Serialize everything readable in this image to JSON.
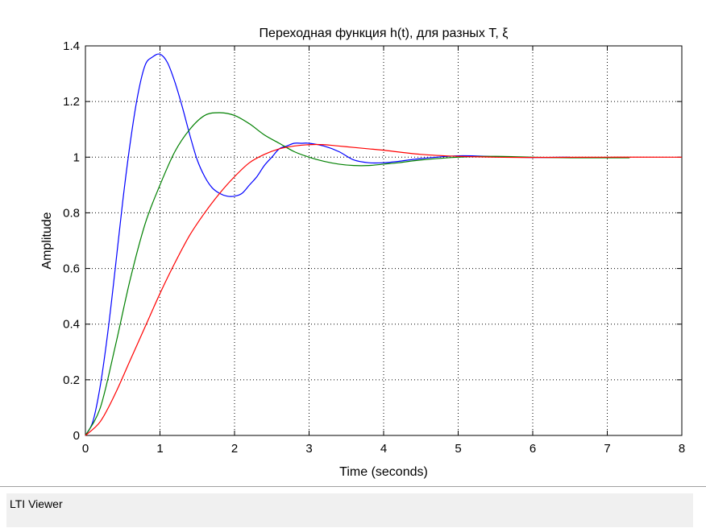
{
  "chart_data": {
    "type": "line",
    "title": "Переходная функция h(t), для разных T, ξ",
    "xlabel": "Time (seconds)",
    "ylabel": "Amplitude",
    "xlim": [
      0,
      8
    ],
    "ylim": [
      0,
      1.4
    ],
    "xticks": [
      "0",
      "1",
      "2",
      "3",
      "4",
      "5",
      "6",
      "7",
      "8"
    ],
    "yticks": [
      "0",
      "0.2",
      "0.4",
      "0.6",
      "0.8",
      "1",
      "1.2",
      "1.4"
    ],
    "grid": true,
    "legend": "none",
    "series": [
      {
        "color": "#0000ff",
        "x_end": 6.5,
        "x": [
          0,
          0.1,
          0.2,
          0.3,
          0.4,
          0.5,
          0.6,
          0.7,
          0.8,
          0.9,
          1.0,
          1.1,
          1.2,
          1.3,
          1.4,
          1.5,
          1.6,
          1.7,
          1.8,
          1.9,
          2.0,
          2.1,
          2.2,
          2.3,
          2.4,
          2.5,
          2.6,
          2.7,
          2.8,
          2.9,
          3.0,
          3.2,
          3.4,
          3.6,
          3.8,
          4.0,
          4.2,
          4.5,
          5.0,
          5.5,
          6.0,
          6.5
        ],
        "y": [
          0,
          0.05,
          0.18,
          0.37,
          0.6,
          0.84,
          1.05,
          1.22,
          1.33,
          1.36,
          1.37,
          1.34,
          1.27,
          1.18,
          1.08,
          0.99,
          0.93,
          0.89,
          0.87,
          0.86,
          0.86,
          0.87,
          0.9,
          0.93,
          0.97,
          1.0,
          1.03,
          1.04,
          1.05,
          1.05,
          1.05,
          1.04,
          1.02,
          0.99,
          0.98,
          0.98,
          0.985,
          0.995,
          1.005,
          1.002,
          0.999,
          1.0
        ]
      },
      {
        "color": "#008000",
        "x_end": 7.3,
        "x": [
          0,
          0.2,
          0.4,
          0.6,
          0.8,
          1.0,
          1.2,
          1.4,
          1.6,
          1.8,
          2.0,
          2.2,
          2.4,
          2.6,
          2.8,
          3.0,
          3.2,
          3.4,
          3.6,
          3.8,
          4.0,
          4.2,
          4.5,
          5.0,
          5.5,
          6.0,
          6.5,
          7.0,
          7.3
        ],
        "y": [
          0,
          0.1,
          0.32,
          0.56,
          0.76,
          0.9,
          1.02,
          1.1,
          1.15,
          1.16,
          1.15,
          1.12,
          1.08,
          1.05,
          1.02,
          1.0,
          0.985,
          0.975,
          0.97,
          0.97,
          0.975,
          0.98,
          0.99,
          1.0,
          1.003,
          1.0,
          0.998,
          0.998,
          0.998
        ]
      },
      {
        "color": "#ff0000",
        "x_end": 8.0,
        "x": [
          0,
          0.2,
          0.4,
          0.6,
          0.8,
          1.0,
          1.2,
          1.4,
          1.6,
          1.8,
          2.0,
          2.2,
          2.4,
          2.6,
          2.8,
          3.0,
          3.2,
          3.4,
          3.6,
          3.8,
          4.0,
          4.5,
          5.0,
          5.5,
          6.0,
          7.0,
          8.0
        ],
        "y": [
          0,
          0.05,
          0.15,
          0.27,
          0.39,
          0.51,
          0.62,
          0.72,
          0.8,
          0.87,
          0.93,
          0.98,
          1.01,
          1.03,
          1.04,
          1.045,
          1.045,
          1.04,
          1.035,
          1.03,
          1.025,
          1.01,
          1.003,
          1.0,
          0.999,
          1.0,
          1.0
        ]
      }
    ]
  },
  "status_bar": {
    "label": "LTI Viewer"
  }
}
